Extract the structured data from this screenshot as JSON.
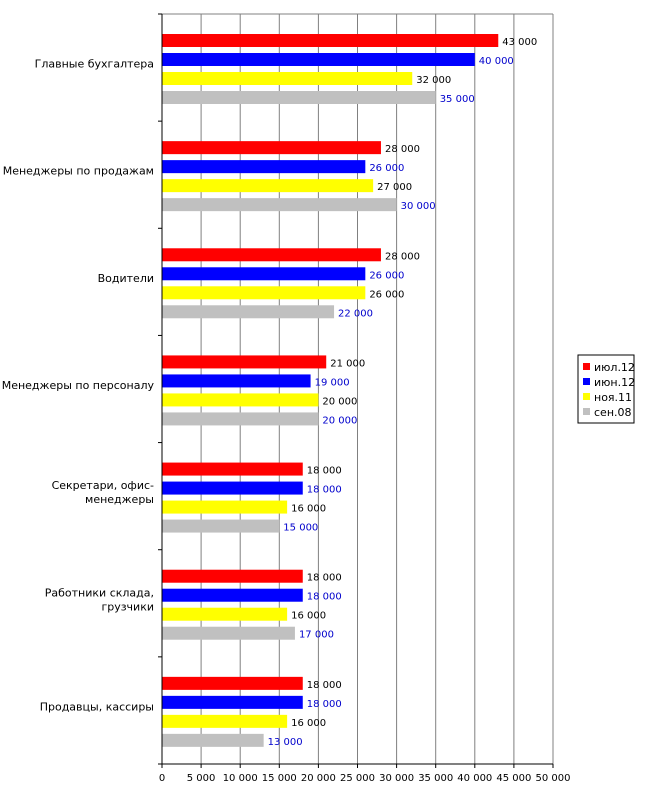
{
  "chart_data": {
    "type": "bar",
    "orientation": "horizontal",
    "title": "",
    "xlabel": "",
    "ylabel": "",
    "xlim": [
      0,
      50000
    ],
    "x_ticks": [
      0,
      5000,
      10000,
      15000,
      20000,
      25000,
      30000,
      35000,
      40000,
      45000,
      50000
    ],
    "x_tick_labels": [
      "0",
      "5 000",
      "10 000",
      "15 000",
      "20 000",
      "25 000",
      "30 000",
      "35 000",
      "40 000",
      "45 000",
      "50 000"
    ],
    "grid": "vertical",
    "legend_position": "right",
    "categories": [
      [
        "Главные бухгалтера"
      ],
      [
        "Менеджеры по продажам"
      ],
      [
        "Водители"
      ],
      [
        "Менеджеры по персоналу"
      ],
      [
        "Секретари, офис-",
        "менеджеры"
      ],
      [
        "Работники склада,",
        "грузчики"
      ],
      [
        "Продавцы, кассиры"
      ]
    ],
    "series": [
      {
        "name": "июл.12",
        "color": "#ff0000",
        "label_color": "#000000",
        "values": [
          43000,
          28000,
          28000,
          21000,
          18000,
          18000,
          18000
        ],
        "labels": [
          "43 000",
          "28 000",
          "28 000",
          "21 000",
          "18 000",
          "18 000",
          "18 000"
        ]
      },
      {
        "name": "июн.12",
        "color": "#0000ff",
        "label_color": "#0000cc",
        "values": [
          40000,
          26000,
          26000,
          19000,
          18000,
          18000,
          18000
        ],
        "labels": [
          "40 000",
          "26 000",
          "26 000",
          "19 000",
          "18 000",
          "18 000",
          "18 000"
        ]
      },
      {
        "name": "ноя.11",
        "color": "#ffff00",
        "label_color": "#000000",
        "values": [
          32000,
          27000,
          26000,
          20000,
          16000,
          16000,
          16000
        ],
        "labels": [
          "32 000",
          "27 000",
          "26 000",
          "20 000",
          "16 000",
          "16 000",
          "16 000"
        ]
      },
      {
        "name": "сен.08",
        "color": "#c0c0c0",
        "label_color": "#0000cc",
        "values": [
          35000,
          30000,
          22000,
          20000,
          15000,
          17000,
          13000
        ],
        "labels": [
          "35 000",
          "30 000",
          "22 000",
          "20 000",
          "15 000",
          "17 000",
          "13 000"
        ]
      }
    ]
  }
}
